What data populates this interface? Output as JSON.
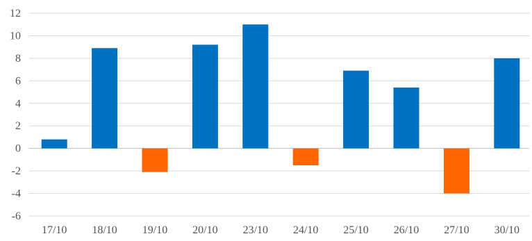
{
  "chart_data": {
    "type": "bar",
    "title": "",
    "xlabel": "",
    "ylabel": "",
    "categories": [
      "17/10",
      "18/10",
      "19/10",
      "20/10",
      "23/10",
      "24/10",
      "25/10",
      "26/10",
      "27/10",
      "30/10"
    ],
    "values": [
      0.8,
      8.9,
      -2.1,
      9.2,
      11.0,
      -1.5,
      6.9,
      5.4,
      -4.0,
      8.0
    ],
    "ylim": [
      -6,
      12
    ],
    "yticks": [
      -6,
      -4,
      -2,
      0,
      2,
      4,
      6,
      8,
      10,
      12
    ],
    "grid": true,
    "legend": "none",
    "colors": {
      "positive": "#0070c0",
      "negative": "#ff6600"
    }
  }
}
